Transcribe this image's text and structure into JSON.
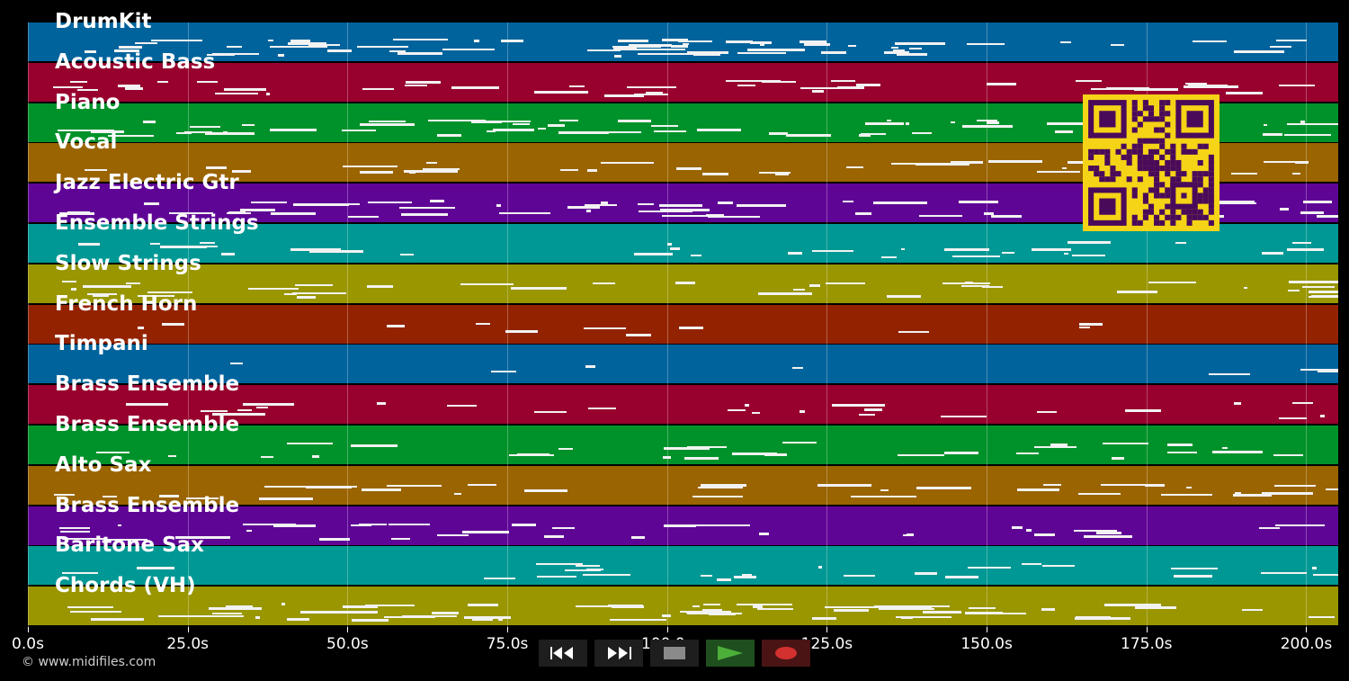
{
  "tracks": [
    {
      "name": "DrumKit",
      "color": "#00639c",
      "density": 0.9
    },
    {
      "name": "Acoustic Bass",
      "color": "#98002e",
      "density": 0.6
    },
    {
      "name": "Piano",
      "color": "#00922a",
      "density": 0.85
    },
    {
      "name": "Vocal",
      "color": "#9a6400",
      "density": 0.45
    },
    {
      "name": "Jazz Electric Gtr",
      "color": "#5f0596",
      "density": 0.85
    },
    {
      "name": "Ensemble Strings",
      "color": "#009894",
      "density": 0.4
    },
    {
      "name": "Slow Strings",
      "color": "#999600",
      "density": 0.55
    },
    {
      "name": "French Horn",
      "color": "#932300",
      "density": 0.12
    },
    {
      "name": "Timpani",
      "color": "#00639c",
      "density": 0.05
    },
    {
      "name": "Brass Ensemble",
      "color": "#98002e",
      "density": 0.35
    },
    {
      "name": "Brass Ensemble",
      "color": "#00922a",
      "density": 0.4
    },
    {
      "name": "Alto Sax",
      "color": "#9a6400",
      "density": 0.5
    },
    {
      "name": "Brass Ensemble",
      "color": "#5f0596",
      "density": 0.5
    },
    {
      "name": "Baritone Sax",
      "color": "#009894",
      "density": 0.35
    },
    {
      "name": "Chords (VH)",
      "color": "#999600",
      "density": 0.9
    }
  ],
  "timeline": {
    "max_seconds": 205,
    "ticks": [
      "0.0s",
      "25.0s",
      "50.0s",
      "75.0s",
      "100.0s",
      "125.0s",
      "150.0s",
      "175.0s",
      "200.0s"
    ],
    "tick_values": [
      0,
      25,
      50,
      75,
      100,
      125,
      150,
      175,
      200
    ]
  },
  "copyright": "© www.midifiles.com",
  "transport": {
    "buttons": [
      {
        "name": "rewind-button",
        "icon": "rewind-icon"
      },
      {
        "name": "fast-forward-button",
        "icon": "fast-forward-icon"
      },
      {
        "name": "stop-button",
        "icon": "stop-icon"
      },
      {
        "name": "play-button",
        "icon": "play-icon"
      },
      {
        "name": "record-button",
        "icon": "record-icon"
      }
    ],
    "icon_colors": {
      "rewind": "#ffffff",
      "forward": "#ffffff",
      "stop": "#8a8a8a",
      "play": "#4caf3a",
      "record": "#d33030"
    }
  },
  "qr": {
    "fg": "#4a0a5a",
    "bg": "#f5d316"
  }
}
